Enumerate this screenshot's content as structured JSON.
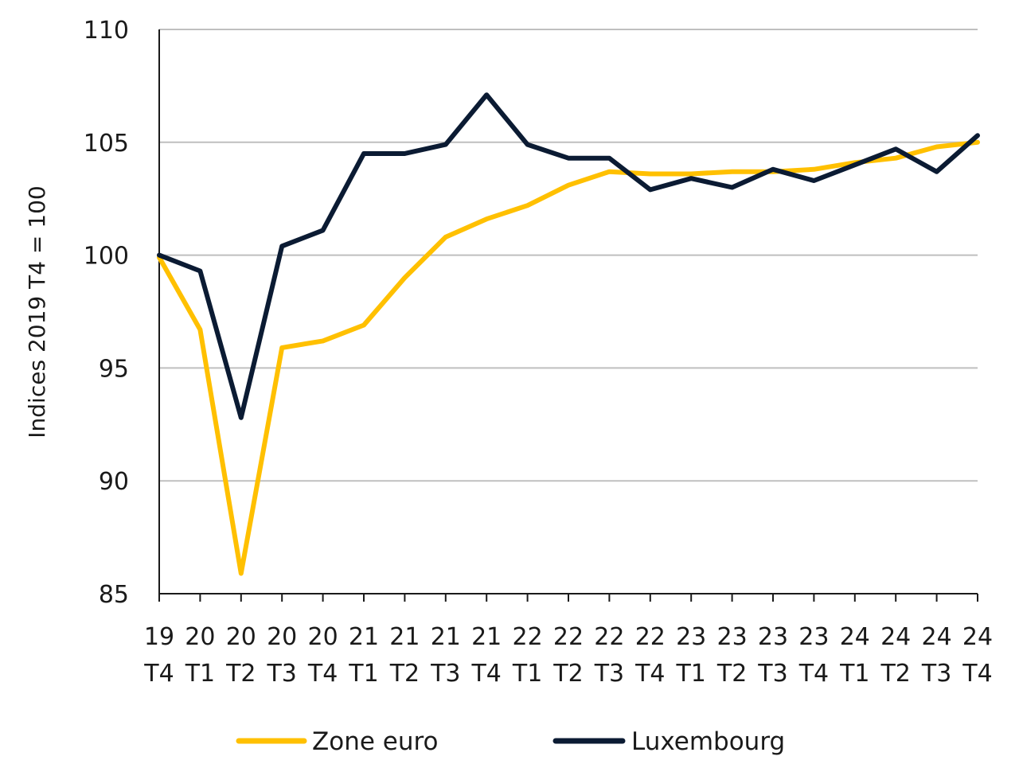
{
  "chart_data": {
    "type": "line",
    "title": "",
    "xlabel": "",
    "ylabel": "Indices 2019 T4 = 100",
    "ylim": [
      85,
      110
    ],
    "yticks": [
      85,
      90,
      95,
      100,
      105,
      110
    ],
    "grid": "horizontal",
    "legend_position": "bottom",
    "x": [
      [
        "19",
        "T4"
      ],
      [
        "20",
        "T1"
      ],
      [
        "20",
        "T2"
      ],
      [
        "20",
        "T3"
      ],
      [
        "20",
        "T4"
      ],
      [
        "21",
        "T1"
      ],
      [
        "21",
        "T2"
      ],
      [
        "21",
        "T3"
      ],
      [
        "21",
        "T4"
      ],
      [
        "22",
        "T1"
      ],
      [
        "22",
        "T2"
      ],
      [
        "22",
        "T3"
      ],
      [
        "22",
        "T4"
      ],
      [
        "23",
        "T1"
      ],
      [
        "23",
        "T2"
      ],
      [
        "23",
        "T3"
      ],
      [
        "23",
        "T4"
      ],
      [
        "24",
        "T1"
      ],
      [
        "24",
        "T2"
      ],
      [
        "24",
        "T3"
      ],
      [
        "24",
        "T4"
      ]
    ],
    "series": [
      {
        "name": "Zone euro",
        "color": "#ffc000",
        "values": [
          99.9,
          96.7,
          85.9,
          95.9,
          96.2,
          96.9,
          99.0,
          100.8,
          101.6,
          102.2,
          103.1,
          103.7,
          103.6,
          103.6,
          103.7,
          103.7,
          103.8,
          104.1,
          104.3,
          104.8,
          105.0
        ]
      },
      {
        "name": "Luxembourg",
        "color": "#0b1b33",
        "values": [
          100.0,
          99.3,
          92.8,
          100.4,
          101.1,
          104.5,
          104.5,
          104.9,
          107.1,
          104.9,
          104.3,
          104.3,
          102.9,
          103.4,
          103.0,
          103.8,
          103.3,
          104.0,
          104.7,
          103.7,
          105.3
        ]
      }
    ]
  }
}
